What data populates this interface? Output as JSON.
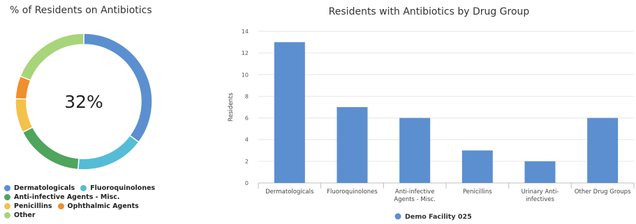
{
  "donut": {
    "title": "% of Residents on Antibiotics",
    "center_label": "32%",
    "legend": [
      [
        "Dermatologicals",
        "Fluoroquinolones"
      ],
      [
        "Anti-infective Agents - Misc."
      ],
      [
        "Penicillins",
        "Ophthalmic Agents"
      ],
      [
        "Other"
      ]
    ]
  },
  "chart_data": [
    {
      "type": "pie",
      "title": "% of Residents on Antibiotics",
      "center_label": "32%",
      "slices": [
        {
          "label": "Dermatologicals",
          "value": 13,
          "color": "#5b8fd0"
        },
        {
          "label": "Fluoroquinolones",
          "value": 6,
          "color": "#55bcd6"
        },
        {
          "label": "Anti-infective Agents - Misc.",
          "value": 6,
          "color": "#4ea55b"
        },
        {
          "label": "Penicillins",
          "value": 3,
          "color": "#f4c14a"
        },
        {
          "label": "Ophthalmic Agents",
          "value": 2,
          "color": "#ef8f2e"
        },
        {
          "label": "Other",
          "value": 7,
          "color": "#a8d47a"
        }
      ]
    },
    {
      "type": "bar",
      "title": "Residents with Antibiotics by Drug Group",
      "xlabel": "",
      "ylabel": "Residents",
      "ylim": [
        0,
        14
      ],
      "yticks": [
        0,
        2,
        4,
        6,
        8,
        10,
        12,
        14
      ],
      "grid": true,
      "legend_position": "bottom",
      "categories": [
        "Dermatologicals",
        "Fluoroquinolones",
        "Anti-infective Agents - Misc.",
        "Penicillins",
        "Urinary Anti-infectives",
        "Other Drug Groups"
      ],
      "category_label_lines": [
        [
          "Dermatologicals"
        ],
        [
          "Fluoroquinolones"
        ],
        [
          "Anti-infective",
          "Agents - Misc."
        ],
        [
          "Penicillins"
        ],
        [
          "Urinary Anti-",
          "infectives"
        ],
        [
          "Other Drug Groups"
        ]
      ],
      "series": [
        {
          "name": "Demo Facility 025",
          "values": [
            13,
            7,
            6,
            3,
            2,
            6
          ],
          "color": "#5b8fd0"
        }
      ]
    }
  ]
}
